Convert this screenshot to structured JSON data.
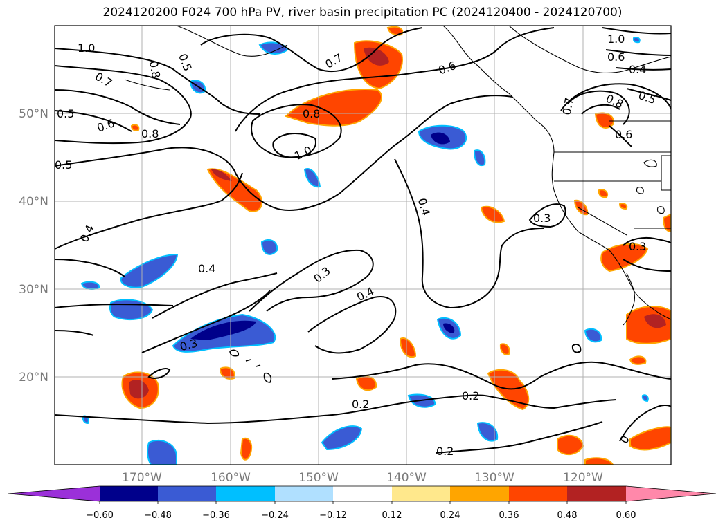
{
  "title": "2024120200 F024 700 hPa PV, river basin precipitation PC (2024120400 - 2024120700)",
  "map": {
    "lon_range": [
      -180,
      -110
    ],
    "lat_range": [
      10,
      60
    ],
    "lat_ticks": [
      {
        "value": 20,
        "label": "20°N"
      },
      {
        "value": 30,
        "label": "30°N"
      },
      {
        "value": 40,
        "label": "40°N"
      },
      {
        "value": 50,
        "label": "50°N"
      }
    ],
    "lon_ticks": [
      {
        "value": -170,
        "label": "170°W"
      },
      {
        "value": -160,
        "label": "160°W"
      },
      {
        "value": -150,
        "label": "150°W"
      },
      {
        "value": -140,
        "label": "140°W"
      },
      {
        "value": -130,
        "label": "130°W"
      },
      {
        "value": -120,
        "label": "120°W"
      }
    ],
    "grid": true,
    "contour_labels": [
      "1.0",
      "0.7",
      "0.8",
      "0.5",
      "0.6",
      "0.8",
      "1.0",
      "0.7",
      "0.8",
      "0.5",
      "0.6",
      "0.5",
      "0.4",
      "0.4",
      "0.3",
      "0.4",
      "0.3",
      "0.4",
      "0.3",
      "0.3",
      "0.2",
      "0.2",
      "0.2",
      "1.0",
      "0.6",
      "0.4",
      "0.5",
      "0.7",
      "0.8",
      "0.6",
      "0.3",
      "0"
    ]
  },
  "colorbar": {
    "colors": [
      "#9b30d9",
      "#00008b",
      "#3a5bd4",
      "#00bfff",
      "#b0e0ff",
      "#ffffff",
      "#ffe88c",
      "#ffa500",
      "#ff4500",
      "#b22222",
      "#ff88aa"
    ],
    "tick_labels": [
      "−0.60",
      "−0.48",
      "−0.36",
      "−0.24",
      "−0.12",
      "0.12",
      "0.24",
      "0.36",
      "0.48",
      "0.60"
    ]
  }
}
